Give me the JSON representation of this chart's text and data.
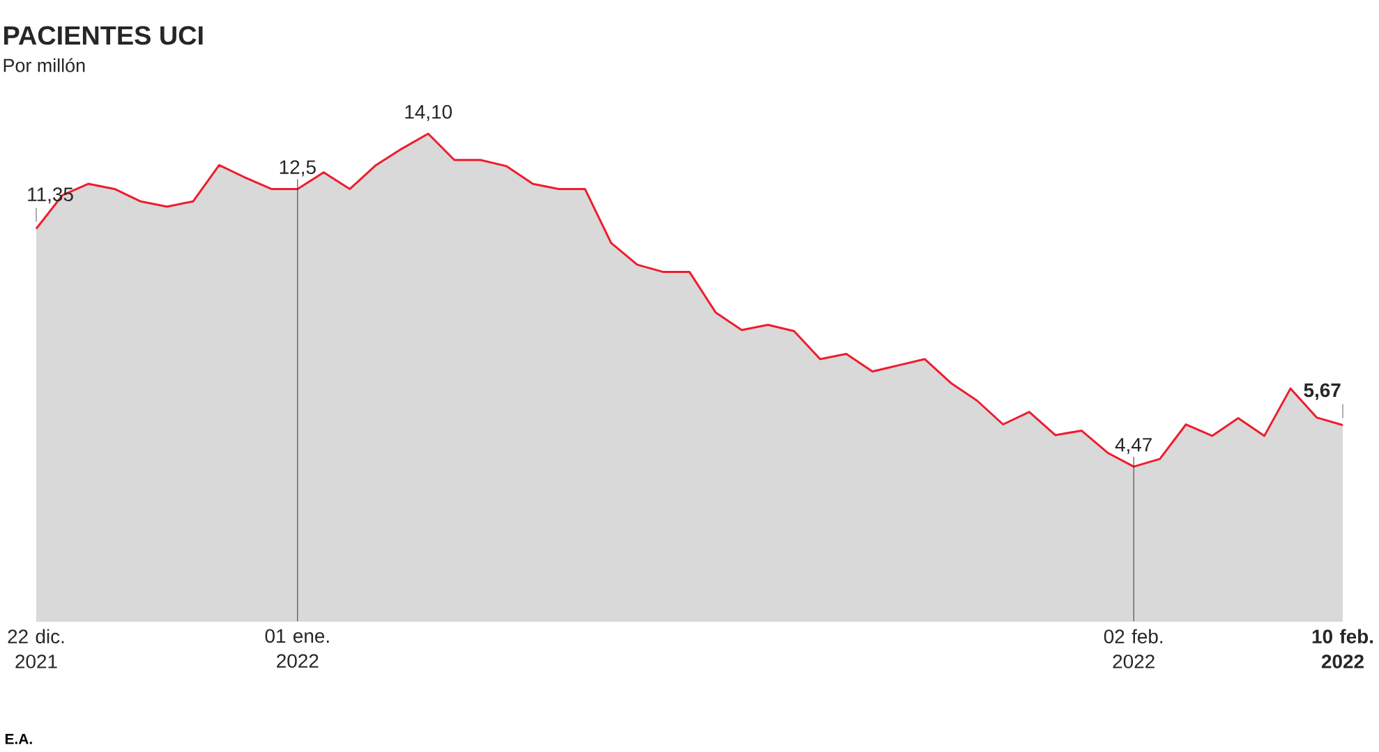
{
  "chart_data": {
    "type": "area",
    "title": "PACIENTES UCI",
    "subtitle": "Por millón",
    "annotations": [
      "E.A."
    ],
    "x": [
      "2021-12-22",
      "2021-12-23",
      "2021-12-24",
      "2021-12-25",
      "2021-12-26",
      "2021-12-27",
      "2021-12-28",
      "2021-12-29",
      "2021-12-30",
      "2021-12-31",
      "2022-01-01",
      "2022-01-02",
      "2022-01-03",
      "2022-01-04",
      "2022-01-05",
      "2022-01-06",
      "2022-01-07",
      "2022-01-08",
      "2022-01-09",
      "2022-01-10",
      "2022-01-11",
      "2022-01-12",
      "2022-01-13",
      "2022-01-14",
      "2022-01-15",
      "2022-01-16",
      "2022-01-17",
      "2022-01-18",
      "2022-01-19",
      "2022-01-20",
      "2022-01-21",
      "2022-01-22",
      "2022-01-23",
      "2022-01-24",
      "2022-01-25",
      "2022-01-26",
      "2022-01-27",
      "2022-01-28",
      "2022-01-29",
      "2022-01-30",
      "2022-01-31",
      "2022-02-01",
      "2022-02-02",
      "2022-02-03",
      "2022-02-04",
      "2022-02-05",
      "2022-02-06",
      "2022-02-07",
      "2022-02-08",
      "2022-02-09",
      "2022-02-10"
    ],
    "series": [
      {
        "color": "#ee1c2e",
        "values": [
          11.35,
          12.32,
          12.65,
          12.5,
          12.14,
          11.99,
          12.14,
          13.19,
          12.83,
          12.5,
          12.5,
          12.98,
          12.5,
          13.19,
          13.67,
          14.1,
          13.34,
          13.34,
          13.16,
          12.65,
          12.5,
          12.5,
          10.94,
          10.31,
          10.1,
          10.1,
          8.93,
          8.42,
          8.57,
          8.39,
          7.58,
          7.73,
          7.22,
          7.4,
          7.58,
          6.89,
          6.38,
          5.69,
          6.05,
          5.38,
          5.51,
          4.87,
          4.47,
          4.69,
          5.69,
          5.36,
          5.87,
          5.36,
          6.73,
          5.89,
          5.67
        ],
        "value_labels": [
          "11,35",
          null,
          null,
          null,
          null,
          null,
          null,
          null,
          null,
          null,
          "12,5",
          null,
          null,
          null,
          null,
          "14,10",
          null,
          null,
          null,
          null,
          null,
          null,
          null,
          null,
          null,
          null,
          null,
          null,
          null,
          null,
          null,
          null,
          null,
          null,
          null,
          null,
          null,
          null,
          null,
          null,
          null,
          null,
          "4,47",
          null,
          null,
          null,
          null,
          null,
          null,
          null,
          "5,67"
        ]
      }
    ],
    "xlim": [
      "2021-12-22",
      "2022-02-10"
    ],
    "xticks": [
      {
        "value": "2021-12-22",
        "label": "22 dic. 2021"
      },
      {
        "value": "2022-01-01",
        "label": "01 ene. 2022"
      },
      {
        "value": "2022-02-02",
        "label": "02 feb. 2022"
      },
      {
        "value": "2022-02-10",
        "label": "10 feb. 2022"
      }
    ],
    "tick_labels": "x",
    "ref_lines": [
      {
        "axis": "x",
        "value": "2022-01-01",
        "color": "#333333"
      },
      {
        "axis": "x",
        "value": "2022-02-02",
        "color": "#333333"
      }
    ],
    "grid": false,
    "marker": "none"
  }
}
